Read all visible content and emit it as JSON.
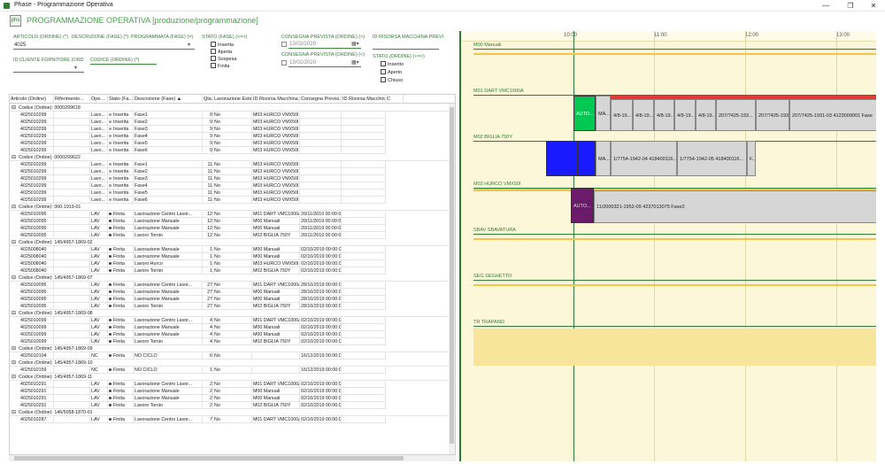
{
  "window": {
    "title": "Phase - Programmazione Operativa",
    "min": "—",
    "max": "❐",
    "close": "✕"
  },
  "app": {
    "logo": "phs",
    "title": "PROGRAMMAZIONE OPERATIVA [produzione/programmazione]"
  },
  "filters": {
    "articolo_label": "ARTICOLO (ORDINE) (*)",
    "articolo_value": "4025",
    "descrizione_label": "DESCRIZIONE (FASE) (*)",
    "programmata_label": "PROGRAMMATA (FASE) (=)",
    "stato_fase_label": "STATO (FASE) (<=>)",
    "stato_fase_options": [
      "Inserita",
      "Aperta",
      "Sospesa",
      "Finita"
    ],
    "consegna1_label": "CONSEGNA PREVISTA (ORDINE) (>)",
    "consegna1_value": "13/02/2020",
    "consegna2_label": "CONSEGNA PREVISTA (ORDINE) (<)",
    "consegna2_value": "15/02/2020",
    "risorsa_label": "ID RISORSA MACCHINA PREVI",
    "stato_ordine_label": "STATO (ORDINE) (<=>)",
    "stato_ordine_options": [
      "Inserito",
      "Aperto",
      "Chiuso"
    ],
    "fornitore_label": "ID CLIENTE FORNITORE (ORD",
    "codice_label": "CODICE (ORDINE) (*)"
  },
  "grid": {
    "columns": [
      "Articolo (Ordine)",
      "Riferimento...",
      "Ope...",
      "Stato (Fa...",
      "Descrizione (Fase) ▲",
      "Qta...",
      "Lavorazione Estern...",
      "ID Risorsa Macchina...",
      "Consegna Previsi...",
      "ID Risorsa Macchina...",
      "C"
    ],
    "groups": [
      {
        "title": "Codice (Ordine): 0000299618",
        "rows": [
          [
            "4025010299",
            "",
            "Lavo...",
            "Inserita",
            "Fase1",
            "9",
            "No",
            "M03 HURCO VMX50I",
            "",
            ""
          ],
          [
            "4025010299",
            "",
            "Lavo...",
            "Inserita",
            "Fase2",
            "9",
            "No",
            "M03 HURCO VMX50I",
            "",
            ""
          ],
          [
            "4025010299",
            "",
            "Lavo...",
            "Inserita",
            "Fase3",
            "9",
            "No",
            "M03 HURCO VMX50I",
            "",
            ""
          ],
          [
            "4025010299",
            "",
            "Lavo...",
            "Inserita",
            "Fase4",
            "9",
            "No",
            "M03 HURCO VMX50I",
            "",
            ""
          ],
          [
            "4025010299",
            "",
            "Lavo...",
            "Inserita",
            "Fase5",
            "9",
            "No",
            "M03 HURCO VMX50I",
            "",
            ""
          ],
          [
            "4025010299",
            "",
            "Lavo...",
            "Inserita",
            "Fase6",
            "9",
            "No",
            "M03 HURCO VMX50I",
            "",
            ""
          ]
        ]
      },
      {
        "title": "Codice (Ordine): 0000299622",
        "rows": [
          [
            "4025010299",
            "",
            "Lavo...",
            "Inserita",
            "Fase1",
            "11",
            "No",
            "M03 HURCO VMX50I",
            "",
            ""
          ],
          [
            "4025010299",
            "",
            "Lavo...",
            "Inserita",
            "Fase2",
            "11",
            "No",
            "M03 HURCO VMX50I",
            "",
            ""
          ],
          [
            "4025010299",
            "",
            "Lavo...",
            "Inserita",
            "Fase3",
            "11",
            "No",
            "M03 HURCO VMX50I",
            "",
            ""
          ],
          [
            "4025010299",
            "",
            "Lavo...",
            "Inserita",
            "Fase4",
            "11",
            "No",
            "M03 HURCO VMX50I",
            "",
            ""
          ],
          [
            "4025010299",
            "",
            "Lavo...",
            "Inserita",
            "Fase5",
            "11",
            "No",
            "M03 HURCO VMX50I",
            "",
            ""
          ],
          [
            "4025010299",
            "",
            "Lavo...",
            "Inserita",
            "Fase6",
            "11",
            "No",
            "M03 HURCO VMX50I",
            "",
            ""
          ]
        ]
      },
      {
        "title": "Codice (Ordine): 000-1919-01",
        "rows": [
          [
            "4025010095",
            "",
            "LAV",
            "Finita",
            "Lavorazione Centro Lavor...",
            "12",
            "No",
            "M01 DART VMC1000A",
            "20/11/2019 00:00:00",
            ""
          ],
          [
            "4025010095",
            "",
            "LAV",
            "Finita",
            "Lavorazione Manuale",
            "12",
            "No",
            "M00 Manuali",
            "20/11/2019 00:00:00",
            ""
          ],
          [
            "4025010095",
            "",
            "LAV",
            "Finita",
            "Lavorazione Manuale",
            "12",
            "No",
            "M00 Manuali",
            "20/11/2019 00:00:00",
            ""
          ],
          [
            "4025010095",
            "",
            "LAV",
            "Finita",
            "Lavoro Tornio",
            "12",
            "No",
            "M02 BIGLIA 750Y",
            "20/11/2019 00:00:00",
            ""
          ]
        ]
      },
      {
        "title": "Codice (Ordine): 145/4957-1869-02",
        "rows": [
          [
            "4025008040",
            "",
            "LAV",
            "Finita",
            "Lavorazione Manuale",
            "1",
            "No",
            "M00 Manuali",
            "02/10/2019 00:00:00",
            ""
          ],
          [
            "4025008040",
            "",
            "LAV",
            "Finita",
            "Lavorazione Manuale",
            "1",
            "No",
            "M00 Manuali",
            "02/10/2019 00:00:00",
            ""
          ],
          [
            "4025008040",
            "",
            "LAV",
            "Finita",
            "Lavoro Hurco",
            "1",
            "No",
            "M03 HURCO VMX50I",
            "02/10/2019 00:00:00",
            ""
          ],
          [
            "4025008040",
            "",
            "LAV",
            "Finita",
            "Lavoro Tornio",
            "1",
            "No",
            "M02 BIGLIA 750Y",
            "02/10/2019 00:00:00",
            ""
          ]
        ]
      },
      {
        "title": "Codice (Ordine): 145/4957-1869-07",
        "rows": [
          [
            "4025010095",
            "",
            "LAV",
            "Finita",
            "Lavorazione Centro Lavor...",
            "27",
            "No",
            "M01 DART VMC1000A",
            "28/10/2019 00:00:00",
            ""
          ],
          [
            "4025010095",
            "",
            "LAV",
            "Finita",
            "Lavorazione Manuale",
            "27",
            "No",
            "M00 Manuali",
            "28/10/2019 00:00:00",
            ""
          ],
          [
            "4025010095",
            "",
            "LAV",
            "Finita",
            "Lavorazione Manuale",
            "27",
            "No",
            "M00 Manuali",
            "28/10/2019 00:00:00",
            ""
          ],
          [
            "4025010095",
            "",
            "LAV",
            "Finita",
            "Lavoro Tornio",
            "27",
            "No",
            "M02 BIGLIA 750Y",
            "28/10/2019 00:00:00",
            ""
          ]
        ]
      },
      {
        "title": "Codice (Ordine): 145/4957-1869-08",
        "rows": [
          [
            "4025010099",
            "",
            "LAV",
            "Finita",
            "Lavorazione Centro Lavor...",
            "4",
            "No",
            "M01 DART VMC1000A",
            "02/10/2019 00:00:00",
            ""
          ],
          [
            "4025010099",
            "",
            "LAV",
            "Finita",
            "Lavorazione Manuale",
            "4",
            "No",
            "M00 Manuali",
            "02/10/2019 00:00:00",
            ""
          ],
          [
            "4025010099",
            "",
            "LAV",
            "Finita",
            "Lavorazione Manuale",
            "4",
            "No",
            "M00 Manuali",
            "02/10/2019 00:00:00",
            ""
          ],
          [
            "4025010099",
            "",
            "LAV",
            "Finita",
            "Lavoro Tornio",
            "4",
            "No",
            "M02 BIGLIA 750Y",
            "02/10/2019 00:00:00",
            ""
          ]
        ]
      },
      {
        "title": "Codice (Ordine): 145/4957-1869-09",
        "rows": [
          [
            "4025010104",
            "",
            "NC",
            "Finita",
            "NO CICLO",
            "6",
            "No",
            "",
            "16/12/2019 00:00:00",
            ""
          ]
        ]
      },
      {
        "title": "Codice (Ordine): 145/4957-1869-10",
        "rows": [
          [
            "4025010159",
            "",
            "NC",
            "Finita",
            "NO CICLO",
            "1",
            "No",
            "",
            "16/12/2019 00:00:00",
            ""
          ]
        ]
      },
      {
        "title": "Codice (Ordine): 145/4957-1869-11",
        "rows": [
          [
            "4025010291",
            "",
            "LAV",
            "Finita",
            "Lavorazione Centro Lavor...",
            "2",
            "No",
            "M01 DART VMC1000A",
            "02/10/2019 00:00:00",
            ""
          ],
          [
            "4025010291",
            "",
            "LAV",
            "Finita",
            "Lavorazione Manuale",
            "2",
            "No",
            "M00 Manuali",
            "02/10/2019 00:00:00",
            ""
          ],
          [
            "4025010291",
            "",
            "LAV",
            "Finita",
            "Lavorazione Manuale",
            "2",
            "No",
            "M00 Manuali",
            "02/10/2019 00:00:00",
            ""
          ],
          [
            "4025010291",
            "",
            "LAV",
            "Finita",
            "Lavoro Tornio",
            "2",
            "No",
            "M02 BIGLIA 750Y",
            "02/10/2019 00:00:00",
            ""
          ]
        ]
      },
      {
        "title": "Codice (Ordine): 146/5058-1870-01",
        "rows": [
          [
            "4025010287",
            "",
            "LAV",
            "Finita",
            "Lavorazione Centro Lavor...",
            "7",
            "No",
            "M01 DART VMC1000A",
            "02/10/2019 00:00:00",
            ""
          ]
        ]
      }
    ]
  },
  "colors": {
    "inserita": "#9e9e9e",
    "finita": "#424242",
    "accent": "#2e7d32"
  },
  "gantt": {
    "ticks": [
      "10:00",
      "11:00",
      "12:00",
      "13:00"
    ],
    "resources": [
      "M00 Manuali",
      "M01 DART VMC1000A",
      "M02 BIGLIA 750Y",
      "M03 HURCO VMX50I",
      "SBAV SBAVATURA",
      "SEG SEGHETTO",
      "TR TRAPANO"
    ],
    "m01_bars": [
      "AUTO...",
      "MA...",
      "4/8-19...",
      "4/8-19...",
      "4/8-19...",
      "4/8-19...",
      "4/8-19...",
      "207/7425-193...",
      "207/7425-193...",
      "207/7425-1931-03 4123009001 Fase"
    ],
    "m02_bars": [
      "",
      "",
      "MA...",
      "1/7754-1942-04   418400116...",
      "1/7754-1942-05   418400116...",
      "F..."
    ],
    "m03_bars": [
      "AUTO...",
      "11/2000321-1952-09 4237013075 Fase2"
    ]
  }
}
